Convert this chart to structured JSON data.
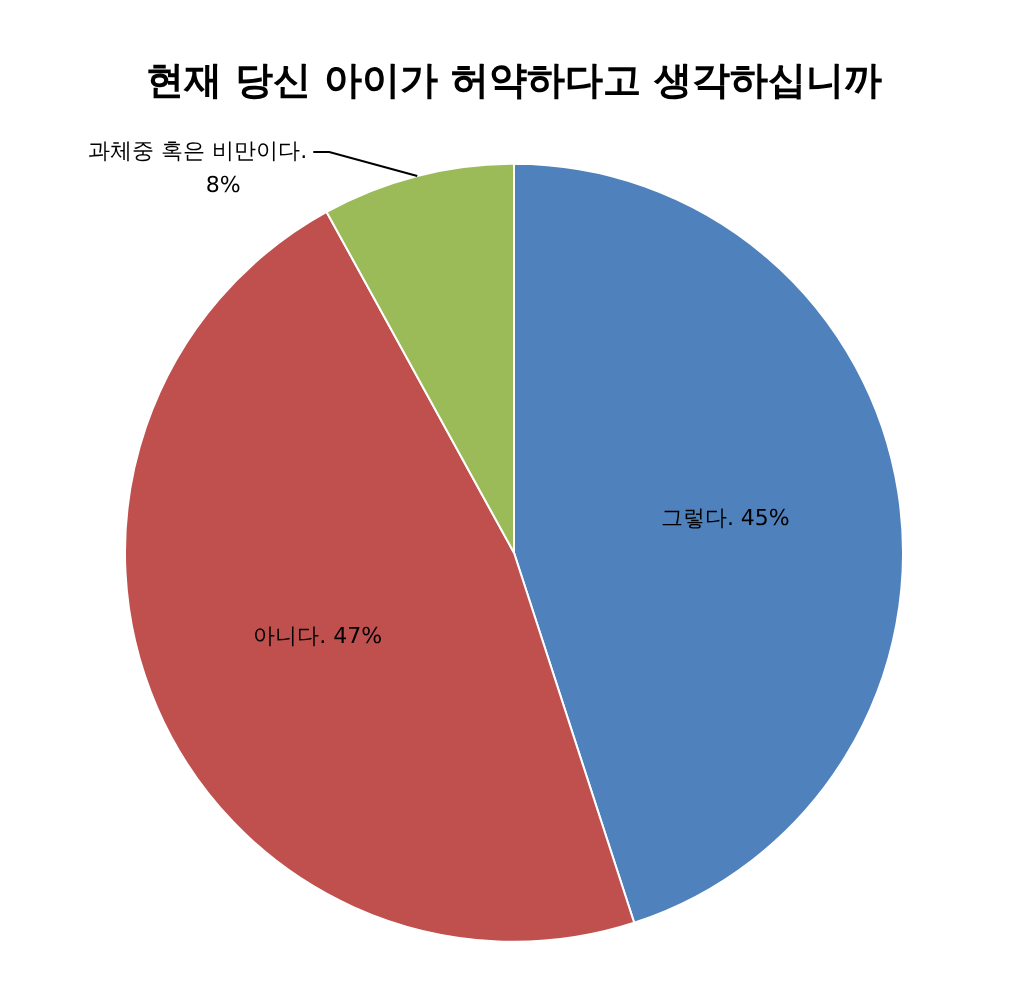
{
  "chart_data": {
    "type": "pie",
    "title": "현재 당신 아이가 허약하다고 생각하십니까",
    "categories": [
      "그렇다.",
      "아니다.",
      "과체중 혹은 비만이다."
    ],
    "values": [
      45,
      47,
      8
    ],
    "colors": [
      "#4f81bd",
      "#c0504d",
      "#9bbb59"
    ],
    "value_labels": [
      "45%",
      "47%",
      "8%"
    ],
    "legend": false
  }
}
